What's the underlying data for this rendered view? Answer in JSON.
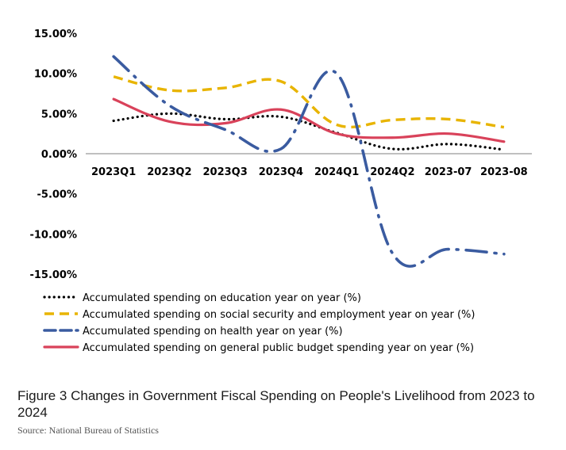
{
  "caption": "Figure 3 Changes in Government Fiscal Spending on People's Livelihood from 2023 to 2024",
  "source": "Source: National Bureau of Statistics",
  "chart_data": {
    "type": "line",
    "title": "",
    "xlabel": "",
    "ylabel": "",
    "categories": [
      "2023Q1",
      "2023Q2",
      "2023Q3",
      "2023Q4",
      "2024Q1",
      "2024Q2",
      "2023-07",
      "2023-08"
    ],
    "ylim": [
      -0.15,
      0.15
    ],
    "yticks": [
      0.15,
      0.1,
      0.05,
      0.0,
      -0.05,
      -0.1,
      -0.15
    ],
    "ytick_labels": [
      "15.00%",
      "10.00%",
      "5.00%",
      "0.00%",
      "-5.00%",
      "-10.00%",
      "-15.00%"
    ],
    "grid": false,
    "legend_position": "bottom",
    "series": [
      {
        "name": "Accumulated spending on education year on year (%)",
        "color": "#000000",
        "dash": "dotted",
        "values": [
          0.041,
          0.05,
          0.043,
          0.046,
          0.026,
          0.006,
          0.012,
          0.005
        ]
      },
      {
        "name": "Accumulated spending on social security and employment year on year (%)",
        "color": "#E8B400",
        "dash": "dashed",
        "values": [
          0.096,
          0.079,
          0.082,
          0.09,
          0.036,
          0.042,
          0.043,
          0.033
        ]
      },
      {
        "name": "Accumulated spending on health year on year (%)",
        "color": "#3A5BA0",
        "dash": "long-dash-dot",
        "values": [
          0.121,
          0.06,
          0.03,
          0.006,
          0.1,
          -0.124,
          -0.119,
          -0.125
        ]
      },
      {
        "name": "Accumulated spending on general public budget spending year on year (%)",
        "color": "#D9425A",
        "dash": "solid",
        "values": [
          0.068,
          0.04,
          0.038,
          0.055,
          0.025,
          0.02,
          0.025,
          0.015
        ]
      }
    ]
  }
}
